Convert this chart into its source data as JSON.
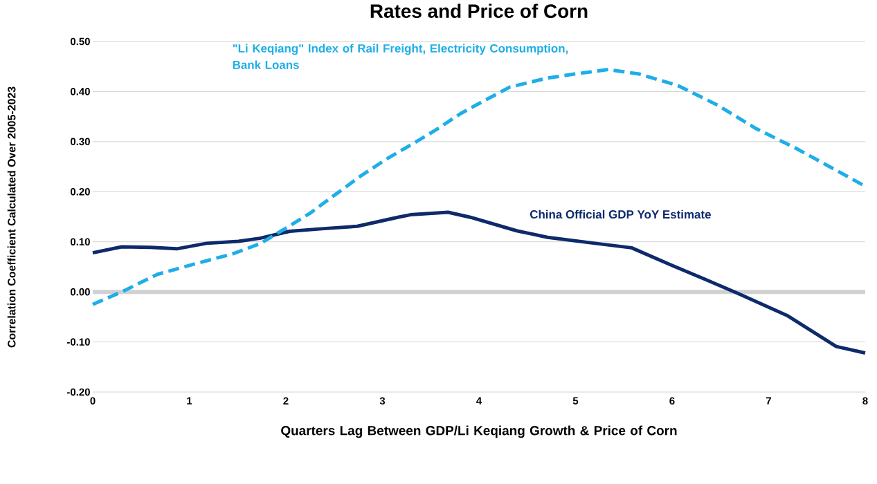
{
  "chart_data": {
    "type": "line",
    "title": "Rates and Price of Corn",
    "xlabel": "Quarters Lag Between GDP/Li Keqiang Growth & Price of Corn",
    "ylabel": "Correlation Coefficient Calculated Over 2005-2023",
    "xlim": [
      0,
      8
    ],
    "xticks": [
      0,
      1,
      2,
      3,
      4,
      5,
      6,
      7,
      8
    ],
    "ylim": [
      -0.2,
      0.5
    ],
    "yticks": [
      {
        "value": -0.2,
        "label": "-0.20"
      },
      {
        "value": -0.1,
        "label": "-0.10"
      },
      {
        "value": 0,
        "label": "0.00"
      },
      {
        "value": 0.1,
        "label": "0.10"
      },
      {
        "value": 0.2,
        "label": "0.20"
      },
      {
        "value": 0.3,
        "label": "0.30"
      },
      {
        "value": 0.4,
        "label": "0.40"
      },
      {
        "value": 0.5,
        "label": "0.50"
      }
    ],
    "grid": "y",
    "legend": false,
    "marker": "none",
    "ref_lines": [
      {
        "axis": "y",
        "value": 0,
        "color": "#d0d0d0"
      }
    ],
    "series": [
      {
        "name": "China Official GDP YoY Estimate",
        "color": "#0d2a6b",
        "line_style": "solid",
        "x": [
          0,
          0.3,
          0.6,
          0.87,
          1.18,
          1.51,
          1.73,
          2.04,
          2.37,
          2.74,
          3.16,
          3.29,
          3.68,
          3.91,
          4.39,
          4.71,
          5.2,
          5.58,
          6.01,
          6.33,
          6.68,
          7.19,
          7.7,
          8
        ],
        "values": [
          0.078,
          0.09,
          0.089,
          0.086,
          0.097,
          0.101,
          0.107,
          0.121,
          0.126,
          0.131,
          0.149,
          0.154,
          0.159,
          0.149,
          0.122,
          0.109,
          0.097,
          0.088,
          0.052,
          0.026,
          -0.003,
          -0.047,
          -0.109,
          -0.122
        ]
      },
      {
        "name": "\"Li Keqiang\" Index of Rail Freight, Electricity Consumption, Bank Loans",
        "color": "#1eaee8",
        "line_style": "dashed",
        "x": [
          0,
          0.3,
          0.67,
          1.06,
          1.45,
          1.73,
          1.99,
          2.25,
          2.51,
          2.78,
          3.04,
          3.29,
          3.55,
          3.81,
          3.96,
          4.32,
          4.71,
          4.99,
          5.34,
          5.66,
          6.06,
          6.47,
          6.87,
          7.27,
          7.67,
          7.99
        ],
        "values": [
          -0.025,
          0.0,
          0.035,
          0.056,
          0.076,
          0.096,
          0.126,
          0.157,
          0.194,
          0.232,
          0.265,
          0.293,
          0.323,
          0.356,
          0.372,
          0.409,
          0.427,
          0.435,
          0.444,
          0.435,
          0.412,
          0.373,
          0.326,
          0.288,
          0.246,
          0.212
        ]
      }
    ]
  }
}
